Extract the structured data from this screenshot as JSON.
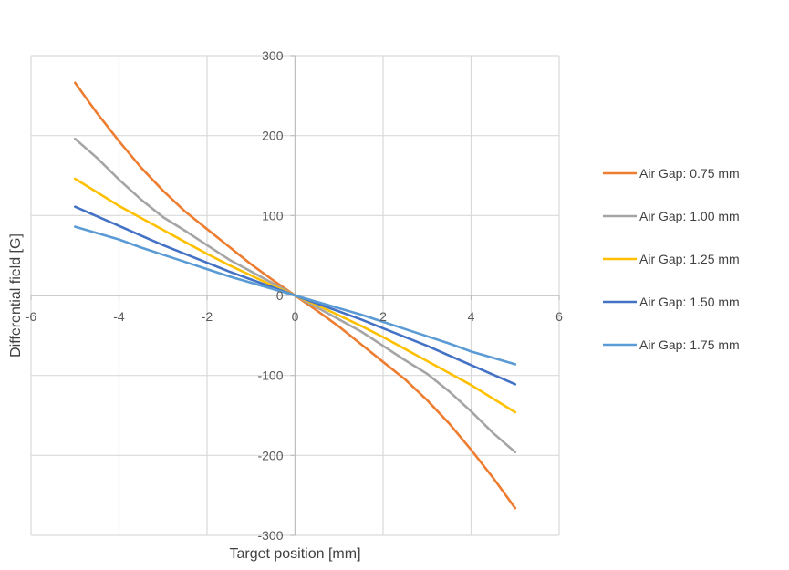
{
  "chart_data": {
    "type": "line",
    "title": "",
    "xlabel": "Target position [mm]",
    "ylabel": "Differential field [G]",
    "xlim": [
      -6,
      6
    ],
    "ylim": [
      -300,
      300
    ],
    "xticks": [
      -6,
      -4,
      -2,
      0,
      2,
      4,
      6
    ],
    "yticks": [
      -300,
      -200,
      -100,
      0,
      100,
      200,
      300
    ],
    "x_tick_labels": [
      "-6",
      "-4",
      "-2",
      "0",
      "2",
      "4",
      "6"
    ],
    "y_tick_labels": [
      "-300",
      "-200",
      "-100",
      "0",
      "100",
      "200",
      "300"
    ],
    "grid": true,
    "legend_position": "right",
    "x": [
      -5,
      -4.5,
      -4,
      -3.5,
      -3,
      -2.5,
      -2,
      -1.5,
      -1,
      -0.5,
      0,
      0.5,
      1,
      1.5,
      2,
      2.5,
      3,
      3.5,
      4,
      4.5,
      5
    ],
    "series": [
      {
        "name": "Air Gap: 0.75 mm",
        "color": "#ED7D31",
        "values": [
          266,
          228,
          193,
          160,
          131,
          105,
          83,
          61,
          39,
          19,
          0,
          -19,
          -39,
          -61,
          -83,
          -105,
          -131,
          -160,
          -193,
          -228,
          -266
        ]
      },
      {
        "name": "Air Gap: 1.00 mm",
        "color": "#A5A5A5",
        "values": [
          196,
          172,
          145,
          120,
          98,
          81,
          63,
          45,
          30,
          15,
          0,
          -15,
          -30,
          -45,
          -63,
          -81,
          -98,
          -120,
          -145,
          -172,
          -196
        ]
      },
      {
        "name": "Air Gap: 1.25 mm",
        "color": "#FFC000",
        "values": [
          146,
          129,
          112,
          97,
          82,
          67,
          52,
          38,
          25,
          12,
          0,
          -12,
          -25,
          -38,
          -52,
          -67,
          -82,
          -97,
          -112,
          -129,
          -146
        ]
      },
      {
        "name": "Air Gap: 1.50 mm",
        "color": "#4472C4",
        "values": [
          111,
          99,
          87,
          75,
          63,
          52,
          41,
          30,
          20,
          10,
          0,
          -10,
          -20,
          -30,
          -41,
          -52,
          -63,
          -75,
          -87,
          -99,
          -111
        ]
      },
      {
        "name": "Air Gap: 1.75 mm",
        "color": "#5B9BD5",
        "values": [
          86,
          78,
          70,
          60,
          51,
          42,
          33,
          24,
          16,
          8,
          0,
          -8,
          -16,
          -24,
          -33,
          -42,
          -51,
          -60,
          -70,
          -78,
          -86
        ]
      }
    ]
  }
}
